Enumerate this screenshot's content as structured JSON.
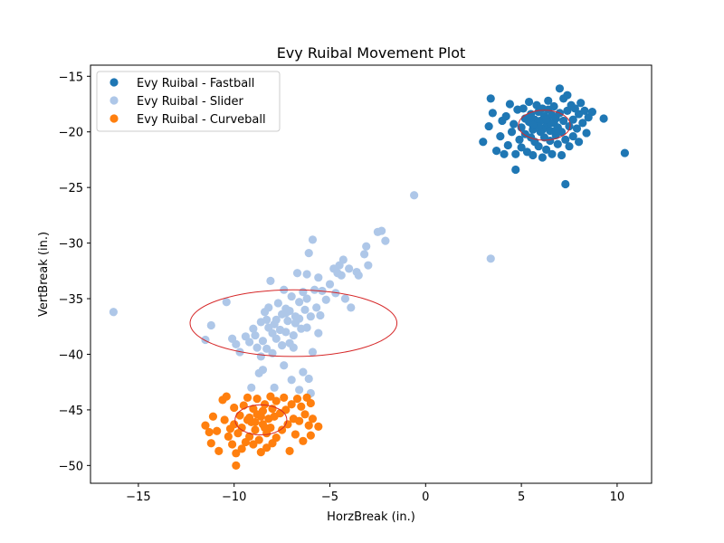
{
  "chart_data": {
    "type": "scatter",
    "title": "Evy Ruibal Movement Plot",
    "xlabel": "HorzBreak (in.)",
    "ylabel": "VertBreak (in.)",
    "xlim": [
      -17.5,
      11.8
    ],
    "ylim": [
      -51.6,
      -14.0
    ],
    "xticks": [
      -15,
      -10,
      -5,
      0,
      5,
      10
    ],
    "yticks": [
      -50,
      -45,
      -40,
      -35,
      -30,
      -25,
      -20,
      -15
    ],
    "grid": false,
    "legend_position": "top-left",
    "series": [
      {
        "name": "Evy Ruibal - Fastball",
        "color": "#1f77b4",
        "ellipse": {
          "cx": 6.2,
          "cy": -19.4,
          "rx": 1.35,
          "ry": 1.35,
          "color": "#d62728"
        },
        "points": [
          [
            3.0,
            -20.9
          ],
          [
            3.3,
            -19.5
          ],
          [
            3.4,
            -17.0
          ],
          [
            3.5,
            -18.3
          ],
          [
            3.7,
            -21.7
          ],
          [
            3.9,
            -20.4
          ],
          [
            4.0,
            -19.0
          ],
          [
            4.1,
            -22.0
          ],
          [
            4.2,
            -18.6
          ],
          [
            4.3,
            -21.2
          ],
          [
            4.4,
            -17.5
          ],
          [
            4.5,
            -20.0
          ],
          [
            4.6,
            -19.3
          ],
          [
            4.7,
            -23.4
          ],
          [
            4.7,
            -22.0
          ],
          [
            4.8,
            -18.0
          ],
          [
            4.9,
            -20.7
          ],
          [
            5.0,
            -19.6
          ],
          [
            5.0,
            -21.4
          ],
          [
            5.1,
            -17.9
          ],
          [
            5.2,
            -18.8
          ],
          [
            5.2,
            -20.2
          ],
          [
            5.3,
            -21.8
          ],
          [
            5.4,
            -19.1
          ],
          [
            5.4,
            -17.3
          ],
          [
            5.5,
            -20.5
          ],
          [
            5.5,
            -18.4
          ],
          [
            5.6,
            -19.8
          ],
          [
            5.6,
            -22.1
          ],
          [
            5.7,
            -18.9
          ],
          [
            5.7,
            -20.9
          ],
          [
            5.8,
            -17.6
          ],
          [
            5.8,
            -19.3
          ],
          [
            5.9,
            -21.3
          ],
          [
            5.9,
            -18.2
          ],
          [
            6.0,
            -20.0
          ],
          [
            6.0,
            -19.0
          ],
          [
            6.1,
            -22.3
          ],
          [
            6.1,
            -17.9
          ],
          [
            6.2,
            -18.6
          ],
          [
            6.2,
            -20.5
          ],
          [
            6.3,
            -19.5
          ],
          [
            6.3,
            -21.6
          ],
          [
            6.4,
            -18.0
          ],
          [
            6.4,
            -17.2
          ],
          [
            6.5,
            -19.9
          ],
          [
            6.5,
            -20.8
          ],
          [
            6.6,
            -18.5
          ],
          [
            6.6,
            -22.0
          ],
          [
            6.7,
            -19.2
          ],
          [
            6.7,
            -17.7
          ],
          [
            6.8,
            -20.3
          ],
          [
            6.8,
            -18.8
          ],
          [
            6.9,
            -21.1
          ],
          [
            6.9,
            -19.6
          ],
          [
            7.0,
            -16.1
          ],
          [
            7.0,
            -18.3
          ],
          [
            7.1,
            -20.0
          ],
          [
            7.1,
            -22.1
          ],
          [
            7.2,
            -17.0
          ],
          [
            7.2,
            -19.0
          ],
          [
            7.3,
            -24.7
          ],
          [
            7.3,
            -20.7
          ],
          [
            7.4,
            -18.1
          ],
          [
            7.4,
            -16.7
          ],
          [
            7.5,
            -19.5
          ],
          [
            7.5,
            -21.3
          ],
          [
            7.6,
            -17.6
          ],
          [
            7.7,
            -18.9
          ],
          [
            7.7,
            -20.4
          ],
          [
            7.8,
            -17.9
          ],
          [
            7.9,
            -19.7
          ],
          [
            8.0,
            -18.4
          ],
          [
            8.0,
            -20.9
          ],
          [
            8.1,
            -17.4
          ],
          [
            8.2,
            -19.2
          ],
          [
            8.3,
            -18.1
          ],
          [
            8.4,
            -20.1
          ],
          [
            8.5,
            -18.7
          ],
          [
            8.7,
            -18.2
          ],
          [
            9.3,
            -18.8
          ],
          [
            10.4,
            -21.9
          ],
          [
            6.1,
            -19.8
          ],
          [
            5.9,
            -19.5
          ],
          [
            6.5,
            -19.2
          ],
          [
            6.3,
            -18.9
          ],
          [
            5.6,
            -19.4
          ],
          [
            6.8,
            -19.9
          ]
        ]
      },
      {
        "name": "Evy Ruibal - Slider",
        "color": "#aec7e8",
        "ellipse": {
          "cx": -6.9,
          "cy": -37.2,
          "rx": 5.4,
          "ry": 3.0,
          "color": "#d62728"
        },
        "points": [
          [
            -16.3,
            -36.2
          ],
          [
            -11.5,
            -38.7
          ],
          [
            -11.2,
            -37.4
          ],
          [
            -10.4,
            -35.3
          ],
          [
            -10.1,
            -38.6
          ],
          [
            -9.9,
            -39.1
          ],
          [
            -9.7,
            -39.8
          ],
          [
            -9.4,
            -38.4
          ],
          [
            -9.2,
            -38.9
          ],
          [
            -9.1,
            -43.0
          ],
          [
            -9.0,
            -37.7
          ],
          [
            -8.9,
            -38.3
          ],
          [
            -8.8,
            -39.4
          ],
          [
            -8.7,
            -41.7
          ],
          [
            -8.6,
            -40.2
          ],
          [
            -8.6,
            -37.1
          ],
          [
            -8.5,
            -38.8
          ],
          [
            -8.4,
            -36.2
          ],
          [
            -8.3,
            -39.5
          ],
          [
            -8.2,
            -37.6
          ],
          [
            -8.2,
            -35.8
          ],
          [
            -8.1,
            -33.4
          ],
          [
            -8.0,
            -38.1
          ],
          [
            -8.0,
            -39.9
          ],
          [
            -7.9,
            -37.3
          ],
          [
            -7.8,
            -36.9
          ],
          [
            -7.8,
            -38.6
          ],
          [
            -7.7,
            -35.4
          ],
          [
            -7.6,
            -37.8
          ],
          [
            -7.5,
            -39.2
          ],
          [
            -7.5,
            -36.4
          ],
          [
            -7.4,
            -34.2
          ],
          [
            -7.3,
            -38.0
          ],
          [
            -7.3,
            -35.9
          ],
          [
            -7.2,
            -37.0
          ],
          [
            -7.1,
            -39.0
          ],
          [
            -7.1,
            -36.1
          ],
          [
            -7.0,
            -34.8
          ],
          [
            -6.9,
            -38.3
          ],
          [
            -6.9,
            -39.4
          ],
          [
            -6.8,
            -37.2
          ],
          [
            -6.8,
            -36.6
          ],
          [
            -6.7,
            -32.7
          ],
          [
            -6.6,
            -35.3
          ],
          [
            -6.6,
            -36.8
          ],
          [
            -6.5,
            -37.7
          ],
          [
            -6.4,
            -34.4
          ],
          [
            -6.4,
            -41.6
          ],
          [
            -6.3,
            -36.0
          ],
          [
            -6.2,
            -35.0
          ],
          [
            -6.2,
            -32.8
          ],
          [
            -6.1,
            -30.9
          ],
          [
            -6.0,
            -36.6
          ],
          [
            -5.9,
            -29.7
          ],
          [
            -5.9,
            -39.8
          ],
          [
            -5.8,
            -34.2
          ],
          [
            -5.7,
            -35.8
          ],
          [
            -5.6,
            -33.1
          ],
          [
            -5.5,
            -36.5
          ],
          [
            -5.4,
            -34.3
          ],
          [
            -5.2,
            -35.1
          ],
          [
            -5.0,
            -33.7
          ],
          [
            -4.8,
            -32.3
          ],
          [
            -4.7,
            -34.5
          ],
          [
            -4.6,
            -32.7
          ],
          [
            -4.5,
            -32.0
          ],
          [
            -4.4,
            -32.9
          ],
          [
            -4.3,
            -31.5
          ],
          [
            -4.2,
            -35.0
          ],
          [
            -4.0,
            -32.3
          ],
          [
            -3.9,
            -35.8
          ],
          [
            -3.6,
            -32.6
          ],
          [
            -3.5,
            -32.9
          ],
          [
            -3.2,
            -31.0
          ],
          [
            -3.1,
            -30.3
          ],
          [
            -3.0,
            -32.0
          ],
          [
            -2.5,
            -29.0
          ],
          [
            -2.3,
            -28.9
          ],
          [
            -2.1,
            -29.8
          ],
          [
            -0.6,
            -25.7
          ],
          [
            3.4,
            -31.4
          ],
          [
            -8.5,
            -41.4
          ],
          [
            -7.4,
            -41.0
          ],
          [
            -7.0,
            -42.3
          ],
          [
            -6.6,
            -43.2
          ],
          [
            -6.1,
            -42.2
          ],
          [
            -6.0,
            -43.5
          ],
          [
            -7.9,
            -43.0
          ],
          [
            -7.3,
            -36.3
          ],
          [
            -6.2,
            -37.6
          ],
          [
            -8.3,
            -36.9
          ],
          [
            -5.6,
            -38.1
          ]
        ]
      },
      {
        "name": "Evy Ruibal - Curveball",
        "color": "#ff7f0e",
        "ellipse": {
          "cx": -8.6,
          "cy": -45.9,
          "rx": 1.35,
          "ry": 1.35,
          "color": "#d62728"
        },
        "points": [
          [
            -11.5,
            -46.4
          ],
          [
            -11.3,
            -47.0
          ],
          [
            -11.2,
            -48.0
          ],
          [
            -11.1,
            -45.6
          ],
          [
            -10.9,
            -46.9
          ],
          [
            -10.8,
            -48.7
          ],
          [
            -10.6,
            -44.1
          ],
          [
            -10.5,
            -45.9
          ],
          [
            -10.4,
            -43.8
          ],
          [
            -10.3,
            -47.4
          ],
          [
            -10.2,
            -46.7
          ],
          [
            -10.1,
            -48.1
          ],
          [
            -10.0,
            -46.3
          ],
          [
            -10.0,
            -44.8
          ],
          [
            -9.9,
            -48.9
          ],
          [
            -9.9,
            -50.0
          ],
          [
            -9.8,
            -47.1
          ],
          [
            -9.7,
            -45.5
          ],
          [
            -9.6,
            -46.6
          ],
          [
            -9.6,
            -48.5
          ],
          [
            -9.5,
            -44.6
          ],
          [
            -9.4,
            -47.9
          ],
          [
            -9.3,
            -45.9
          ],
          [
            -9.3,
            -43.9
          ],
          [
            -9.2,
            -47.4
          ],
          [
            -9.1,
            -46.1
          ],
          [
            -9.0,
            -48.1
          ],
          [
            -9.0,
            -44.9
          ],
          [
            -8.9,
            -46.8
          ],
          [
            -8.8,
            -45.4
          ],
          [
            -8.8,
            -44.0
          ],
          [
            -8.7,
            -47.7
          ],
          [
            -8.6,
            -48.8
          ],
          [
            -8.5,
            -46.3
          ],
          [
            -8.5,
            -45.1
          ],
          [
            -8.4,
            -44.5
          ],
          [
            -8.3,
            -47.1
          ],
          [
            -8.3,
            -48.4
          ],
          [
            -8.2,
            -45.8
          ],
          [
            -8.1,
            -43.8
          ],
          [
            -8.1,
            -46.6
          ],
          [
            -8.0,
            -44.9
          ],
          [
            -8.0,
            -48.0
          ],
          [
            -7.9,
            -45.6
          ],
          [
            -7.8,
            -44.2
          ],
          [
            -7.8,
            -47.5
          ],
          [
            -7.6,
            -45.3
          ],
          [
            -7.5,
            -46.8
          ],
          [
            -7.4,
            -43.9
          ],
          [
            -7.3,
            -45.0
          ],
          [
            -7.2,
            -46.3
          ],
          [
            -7.1,
            -48.7
          ],
          [
            -7.0,
            -44.5
          ],
          [
            -6.9,
            -45.8
          ],
          [
            -6.8,
            -47.2
          ],
          [
            -6.7,
            -44.0
          ],
          [
            -6.6,
            -46.0
          ],
          [
            -6.5,
            -44.7
          ],
          [
            -6.4,
            -47.8
          ],
          [
            -6.3,
            -45.4
          ],
          [
            -6.2,
            -43.9
          ],
          [
            -6.1,
            -46.4
          ],
          [
            -6.0,
            -44.4
          ],
          [
            -6.0,
            -47.3
          ],
          [
            -5.9,
            -45.8
          ],
          [
            -5.6,
            -46.5
          ],
          [
            -8.6,
            -45.6
          ],
          [
            -8.9,
            -46.1
          ],
          [
            -8.4,
            -46.6
          ],
          [
            -9.2,
            -45.7
          ]
        ]
      }
    ]
  }
}
